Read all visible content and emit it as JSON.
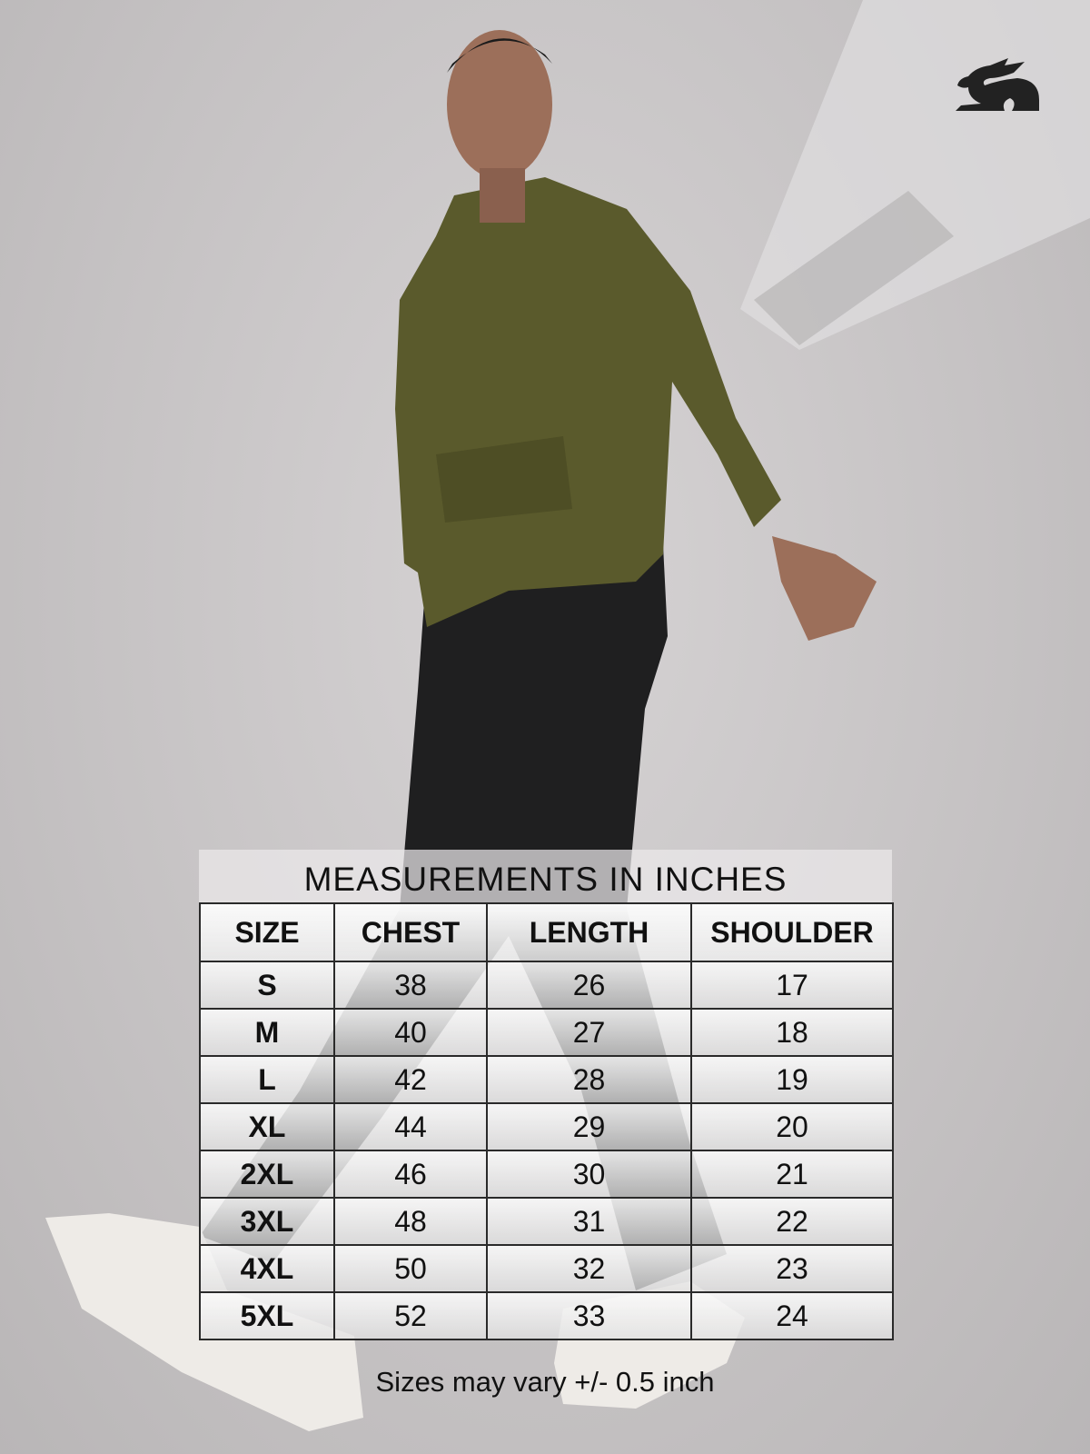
{
  "brand": {
    "logo": "rabbit-logo",
    "color": "#222222"
  },
  "size_chart": {
    "title": "MEASUREMENTS IN INCHES",
    "headers": [
      "SIZE",
      "CHEST",
      "LENGTH",
      "SHOULDER"
    ],
    "rows": [
      [
        "S",
        "38",
        "26",
        "17"
      ],
      [
        "M",
        "40",
        "27",
        "18"
      ],
      [
        "L",
        "42",
        "28",
        "19"
      ],
      [
        "XL",
        "44",
        "29",
        "20"
      ],
      [
        "2XL",
        "46",
        "30",
        "21"
      ],
      [
        "3XL",
        "48",
        "31",
        "22"
      ],
      [
        "4XL",
        "50",
        "32",
        "23"
      ],
      [
        "5XL",
        "52",
        "33",
        "24"
      ]
    ],
    "note": "Sizes may vary +/- 0.5 inch"
  },
  "product": {
    "hoodie_color": "#5a5a2c",
    "pants_color": "#1e1e1e"
  }
}
